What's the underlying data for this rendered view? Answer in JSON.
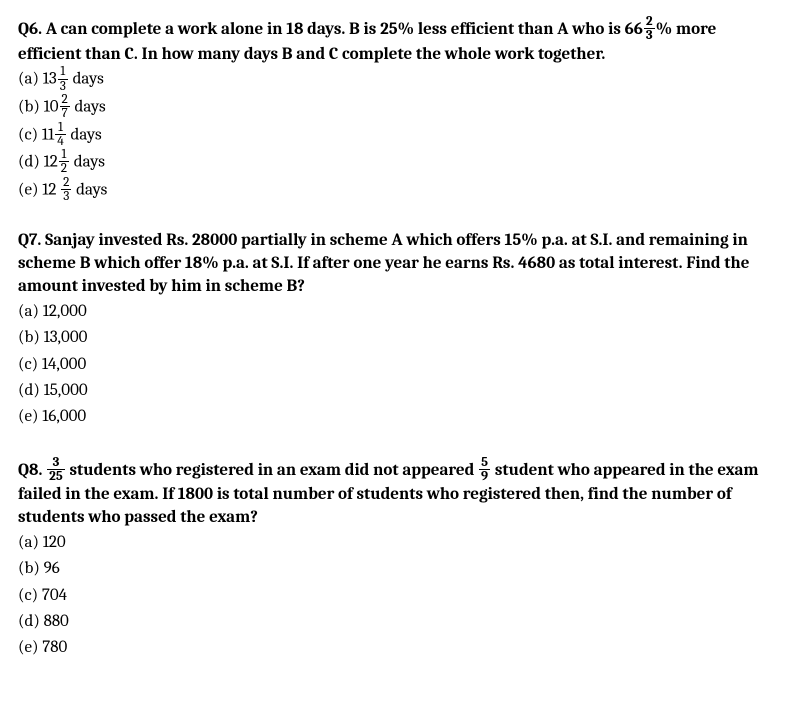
{
  "q6": {
    "label": "Q6.",
    "text_part1": "A can complete a work alone in 18 days. B is 25% less efficient than A who is 66",
    "frac_num": "2",
    "frac_den": "3",
    "text_part2": "% more efficient than C. In how many days B and C complete the whole work together.",
    "options": {
      "a": {
        "prefix": "(a) 13",
        "num": "1",
        "den": "3",
        "suffix": "days"
      },
      "b": {
        "prefix": "(b) 10",
        "num": "2",
        "den": "7",
        "suffix": "days"
      },
      "c": {
        "prefix": "(c) 11",
        "num": "1",
        "den": "4",
        "suffix": "days"
      },
      "d": {
        "prefix": "(d) 12",
        "num": "1",
        "den": "2",
        "suffix": "days"
      },
      "e": {
        "prefix": "(e) 12 ",
        "num": "2",
        "den": "3",
        "suffix": "days"
      }
    }
  },
  "q7": {
    "label": "Q7.",
    "text": "Sanjay invested Rs. 28000 partially in scheme A which offers 15% p.a. at S.I. and remaining in scheme B which offer 18% p.a. at S.I. If after one year he earns Rs. 4680 as total interest. Find the amount invested by him in scheme B?",
    "options": {
      "a": "(a) 12,000",
      "b": "(b) 13,000",
      "c": "(c) 14,000",
      "d": "(d) 15,000",
      "e": "(e) 16,000"
    }
  },
  "q8": {
    "label": "Q8.",
    "frac1_num": "3",
    "frac1_den": "25",
    "text_part1": "students who registered in an exam did not appeared",
    "frac2_num": "5",
    "frac2_den": "9",
    "text_part2": "student who appeared in the exam failed in the exam. If 1800 is total number of students who registered then, find the number of students who passed the exam?",
    "options": {
      "a": "(a) 120",
      "b": "(b) 96",
      "c": "(c) 704",
      "d": "(d) 880",
      "e": "(e) 780"
    }
  }
}
